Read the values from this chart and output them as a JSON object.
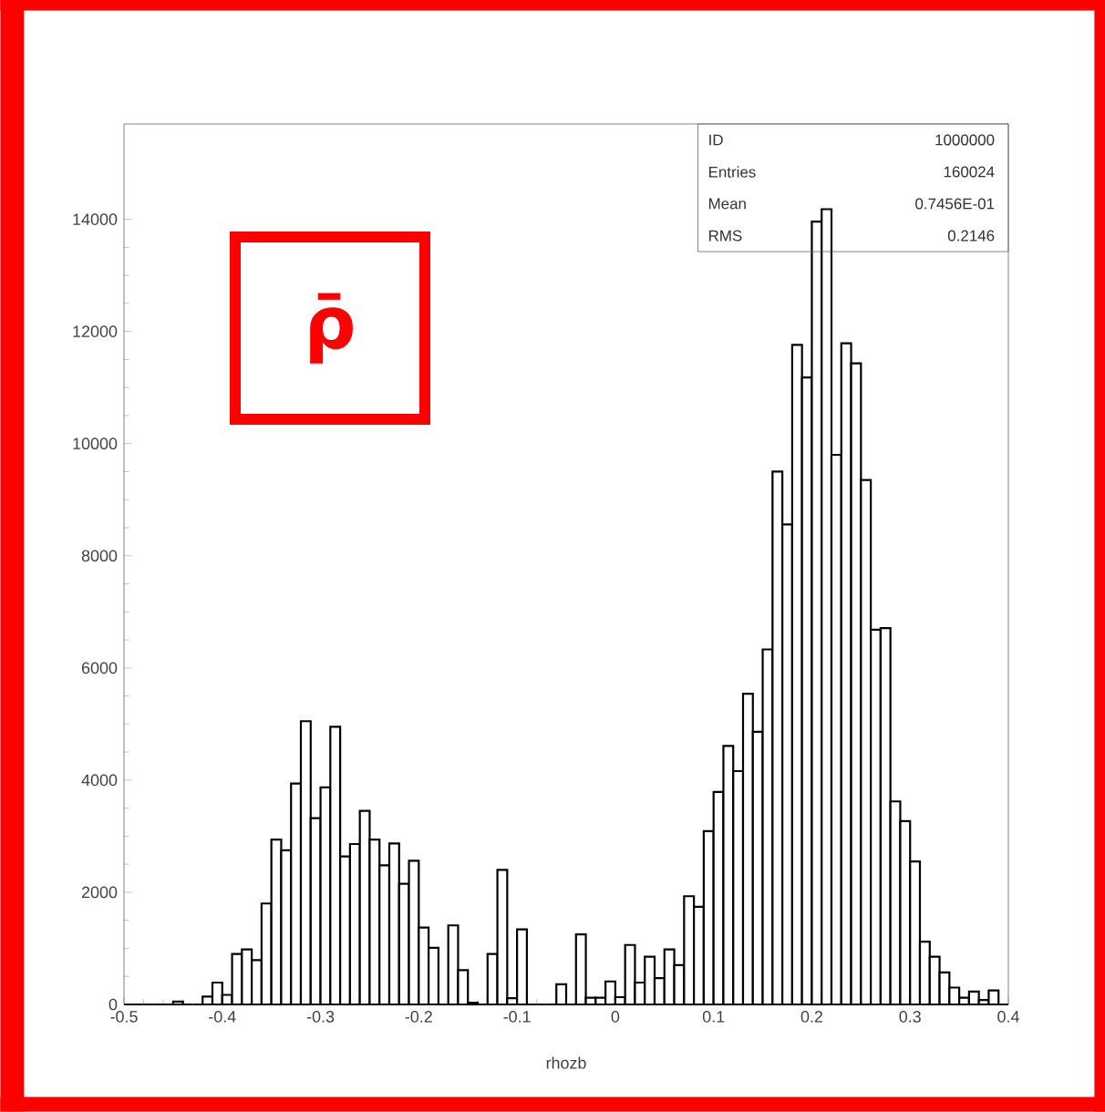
{
  "chart_data": {
    "type": "histogram",
    "title": "ρ̄",
    "xlabel": "rhozb",
    "color": "#000000",
    "bins": [
      -0.5,
      -0.49,
      -0.48,
      -0.47,
      -0.46,
      -0.45,
      -0.44,
      -0.43,
      -0.42,
      -0.41,
      -0.4,
      -0.39,
      -0.38,
      -0.37,
      -0.36,
      -0.35,
      -0.34,
      -0.33,
      -0.32,
      -0.31,
      -0.3,
      -0.29,
      -0.28,
      -0.27,
      -0.26,
      -0.25,
      -0.24,
      -0.23,
      -0.22,
      -0.21,
      -0.2,
      -0.19,
      -0.18,
      -0.17,
      -0.16,
      -0.15,
      -0.14,
      -0.13,
      -0.12,
      -0.11,
      -0.1,
      -0.09,
      -0.08,
      -0.07,
      -0.06,
      -0.05,
      -0.04,
      -0.03,
      -0.02,
      -0.01,
      0,
      0.01,
      0.02,
      0.03,
      0.04,
      0.05,
      0.06,
      0.07,
      0.08,
      0.09,
      0.1,
      0.11,
      0.12,
      0.13,
      0.14,
      0.15,
      0.16,
      0.17,
      0.18,
      0.19,
      0.2,
      0.21,
      0.22,
      0.23,
      0.24,
      0.25,
      0.26,
      0.27,
      0.28,
      0.29,
      0.3,
      0.31,
      0.32,
      0.33,
      0.34,
      0.35,
      0.36,
      0.37,
      0.38,
      0.39,
      0.4
    ],
    "values": [
      0,
      0,
      0,
      0,
      0,
      50,
      0,
      0,
      140,
      390,
      170,
      900,
      980,
      790,
      1800,
      2940,
      2750,
      3940,
      5050,
      3320,
      3870,
      4950,
      2640,
      2860,
      3450,
      2940,
      2480,
      2870,
      2150,
      2560,
      1370,
      1010,
      0,
      1410,
      610,
      30,
      0,
      900,
      2400,
      110,
      1340,
      0,
      0,
      0,
      360,
      0,
      1250,
      120,
      120,
      410,
      130,
      1060,
      390,
      850,
      470,
      980,
      700,
      1930,
      1740,
      3090,
      3790,
      4610,
      4160,
      5540,
      4860,
      6330,
      9500,
      8560,
      11760,
      11180,
      13960,
      14180,
      9800,
      11790,
      11430,
      9350,
      6680,
      6710,
      3620,
      3270,
      2550,
      1120,
      850,
      570,
      300,
      120,
      230,
      80,
      250,
      0
    ],
    "xlim": [
      -0.5,
      0.4
    ],
    "ylim": [
      0,
      15700
    ],
    "xticks": [
      -0.5,
      -0.4,
      -0.3,
      -0.2,
      -0.1,
      0,
      0.1,
      0.2,
      0.3,
      0.4
    ],
    "yticks": [
      0,
      2000,
      4000,
      6000,
      8000,
      10000,
      12000,
      14000
    ],
    "annotations": [
      "ID",
      "1000000",
      "Entries",
      "160024",
      "Mean",
      "0.7456E-01",
      "RMS",
      "0.2146"
    ]
  }
}
